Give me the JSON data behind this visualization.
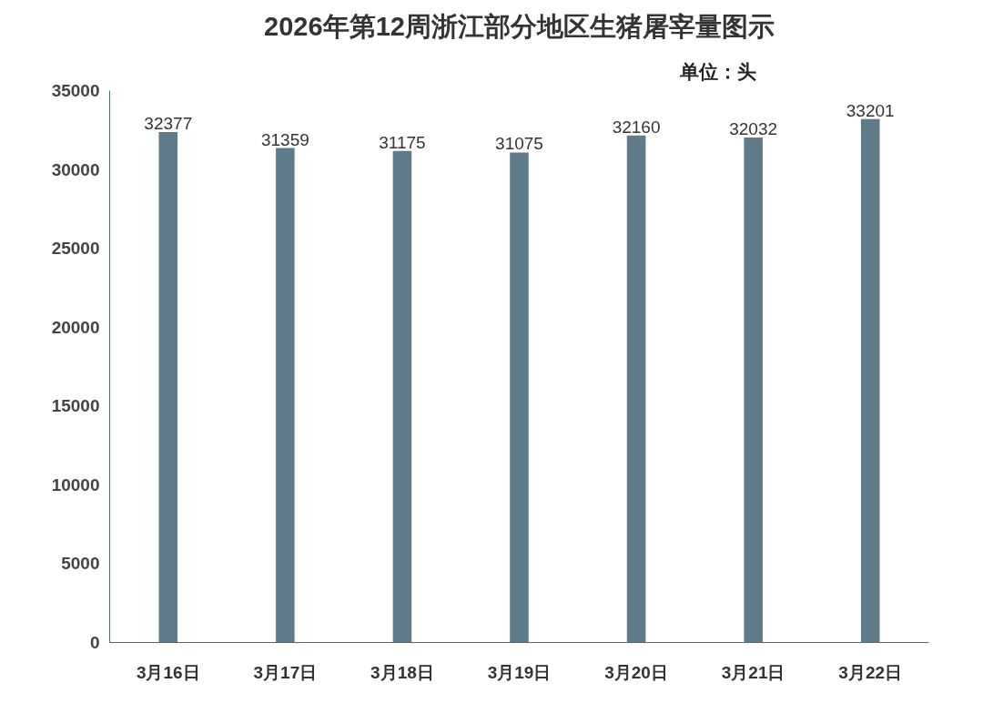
{
  "chart_data": {
    "type": "bar",
    "title": "2026年第12周浙江部分地区生猪屠宰量图示",
    "annotations": [
      "单位：头"
    ],
    "categories": [
      "3月16日",
      "3月17日",
      "3月18日",
      "3月19日",
      "3月20日",
      "3月21日",
      "3月22日"
    ],
    "values": [
      32377,
      31359,
      31175,
      31075,
      32160,
      32032,
      33201
    ],
    "color": "#5f7b8a",
    "ylim": [
      0,
      35000
    ],
    "yticks": [
      0,
      5000,
      10000,
      15000,
      20000,
      25000,
      30000,
      35000
    ],
    "grid": false,
    "data_labels": true
  }
}
